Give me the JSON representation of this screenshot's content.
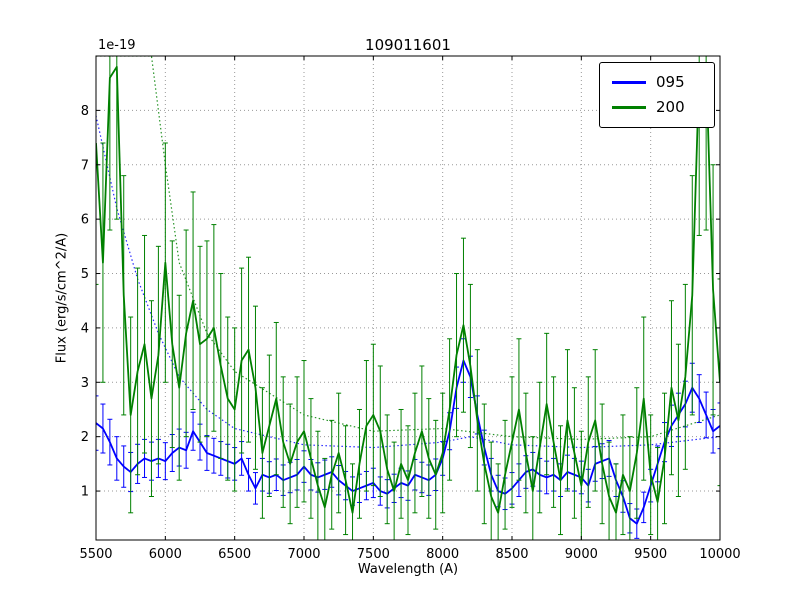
{
  "chart_data": {
    "type": "line",
    "title": "109011601",
    "xlabel": "Wavelength (A)",
    "ylabel": "Flux (erg/s/cm^2/A)",
    "y_offset_label": "1e-19",
    "xlim": [
      5500,
      10000
    ],
    "ylim": [
      0.1,
      9.0
    ],
    "xticks": [
      5500,
      6000,
      6500,
      7000,
      7500,
      8000,
      8500,
      9000,
      9500,
      10000
    ],
    "yticks": [
      1,
      2,
      3,
      4,
      5,
      6,
      7,
      8
    ],
    "grid": {
      "on": true,
      "style": "dotted",
      "color": "#999999"
    },
    "legend_position": "upper right",
    "x": [
      5500,
      5550,
      5600,
      5650,
      5700,
      5750,
      5800,
      5850,
      5900,
      5950,
      6000,
      6050,
      6100,
      6150,
      6200,
      6250,
      6300,
      6350,
      6400,
      6450,
      6500,
      6550,
      6600,
      6650,
      6700,
      6750,
      6800,
      6850,
      6900,
      6950,
      7000,
      7050,
      7100,
      7150,
      7200,
      7250,
      7300,
      7350,
      7400,
      7450,
      7500,
      7550,
      7600,
      7650,
      7700,
      7750,
      7800,
      7850,
      7900,
      7950,
      8000,
      8050,
      8100,
      8150,
      8200,
      8250,
      8300,
      8350,
      8400,
      8450,
      8500,
      8550,
      8600,
      8650,
      8700,
      8750,
      8800,
      8850,
      8900,
      8950,
      9000,
      9050,
      9100,
      9150,
      9200,
      9250,
      9300,
      9350,
      9400,
      9450,
      9500,
      9550,
      9600,
      9650,
      9700,
      9750,
      9800,
      9850,
      9900,
      9950,
      10000
    ],
    "series": [
      {
        "name": "095",
        "color": "#0000ff",
        "values": [
          2.25,
          2.15,
          1.9,
          1.6,
          1.45,
          1.35,
          1.5,
          1.6,
          1.55,
          1.6,
          1.55,
          1.7,
          1.8,
          1.75,
          2.1,
          1.9,
          1.7,
          1.65,
          1.6,
          1.55,
          1.5,
          1.6,
          1.3,
          1.05,
          1.3,
          1.25,
          1.3,
          1.2,
          1.25,
          1.3,
          1.45,
          1.3,
          1.25,
          1.3,
          1.35,
          1.2,
          1.1,
          1.0,
          1.05,
          1.1,
          1.15,
          1.0,
          0.95,
          1.05,
          1.15,
          1.1,
          1.3,
          1.25,
          1.2,
          1.3,
          1.6,
          2.1,
          2.9,
          3.4,
          3.1,
          2.4,
          1.8,
          1.3,
          1.0,
          0.95,
          1.05,
          1.2,
          1.35,
          1.4,
          1.3,
          1.25,
          1.3,
          1.2,
          1.35,
          1.3,
          1.25,
          1.1,
          1.5,
          1.55,
          1.6,
          1.2,
          0.9,
          0.5,
          0.4,
          0.7,
          1.1,
          1.5,
          1.9,
          2.2,
          2.4,
          2.6,
          2.9,
          2.7,
          2.4,
          2.1,
          2.2
        ],
        "errors": [
          0.5,
          0.45,
          0.42,
          0.4,
          0.38,
          0.36,
          0.36,
          0.35,
          0.35,
          0.35,
          0.34,
          0.34,
          0.34,
          0.33,
          0.35,
          0.33,
          0.32,
          0.32,
          0.31,
          0.31,
          0.3,
          0.31,
          0.3,
          0.29,
          0.3,
          0.29,
          0.29,
          0.28,
          0.28,
          0.28,
          0.29,
          0.28,
          0.27,
          0.27,
          0.28,
          0.27,
          0.26,
          0.26,
          0.26,
          0.26,
          0.27,
          0.26,
          0.26,
          0.26,
          0.27,
          0.27,
          0.28,
          0.28,
          0.28,
          0.29,
          0.31,
          0.34,
          0.38,
          0.4,
          0.38,
          0.35,
          0.32,
          0.3,
          0.29,
          0.29,
          0.29,
          0.3,
          0.3,
          0.31,
          0.3,
          0.3,
          0.3,
          0.3,
          0.31,
          0.3,
          0.3,
          0.3,
          0.32,
          0.32,
          0.33,
          0.3,
          0.29,
          0.27,
          0.27,
          0.28,
          0.3,
          0.33,
          0.36,
          0.38,
          0.4,
          0.42,
          0.45,
          0.44,
          0.42,
          0.4,
          0.42
        ],
        "model_dotted": {
          "x": [
            5500,
            5650,
            5800,
            5950,
            6100,
            6300,
            6500,
            7000,
            7500,
            8000,
            8200,
            8500,
            9000,
            9500,
            10000
          ],
          "y": [
            7.9,
            6.2,
            4.9,
            3.9,
            3.1,
            2.5,
            2.15,
            1.85,
            1.8,
            1.9,
            2.0,
            1.85,
            1.8,
            1.85,
            2.0
          ]
        }
      },
      {
        "name": "200",
        "color": "#008000",
        "values": [
          7.4,
          5.2,
          8.6,
          8.8,
          4.6,
          2.4,
          3.2,
          3.7,
          2.7,
          3.5,
          5.2,
          3.7,
          2.9,
          3.9,
          4.5,
          3.7,
          3.8,
          4.0,
          3.3,
          2.7,
          2.5,
          3.4,
          3.6,
          2.9,
          1.7,
          2.2,
          2.7,
          1.9,
          1.5,
          1.9,
          2.1,
          1.6,
          1.1,
          0.7,
          1.3,
          1.7,
          1.2,
          0.6,
          1.5,
          2.2,
          2.4,
          2.1,
          1.4,
          1.0,
          1.5,
          1.2,
          1.7,
          2.1,
          1.6,
          1.3,
          1.7,
          2.5,
          3.5,
          4.05,
          3.3,
          2.3,
          1.5,
          0.9,
          0.6,
          1.3,
          1.9,
          2.5,
          1.7,
          1.0,
          1.8,
          2.6,
          1.9,
          1.2,
          2.3,
          1.7,
          1.1,
          1.9,
          2.3,
          1.5,
          0.9,
          0.6,
          1.3,
          1.0,
          1.7,
          2.7,
          1.3,
          0.8,
          1.6,
          2.9,
          2.3,
          3.1,
          4.6,
          8.7,
          8.8,
          4.7,
          3.0
        ],
        "errors": [
          2.6,
          2.2,
          2.8,
          2.8,
          2.2,
          1.8,
          1.9,
          2.0,
          1.8,
          2.0,
          2.2,
          1.9,
          1.7,
          1.9,
          2.0,
          1.8,
          1.8,
          1.9,
          1.7,
          1.5,
          1.5,
          1.7,
          1.7,
          1.5,
          1.2,
          1.3,
          1.4,
          1.2,
          1.1,
          1.2,
          1.3,
          1.1,
          1.0,
          0.9,
          1.0,
          1.1,
          1.0,
          0.9,
          1.0,
          1.2,
          1.3,
          1.2,
          1.0,
          0.9,
          1.0,
          1.0,
          1.1,
          1.2,
          1.1,
          1.0,
          1.1,
          1.3,
          1.5,
          1.6,
          1.5,
          1.3,
          1.1,
          1.0,
          0.9,
          1.0,
          1.2,
          1.3,
          1.1,
          1.0,
          1.2,
          1.3,
          1.2,
          1.0,
          1.3,
          1.2,
          1.0,
          1.2,
          1.3,
          1.1,
          1.0,
          0.9,
          1.1,
          1.0,
          1.2,
          1.5,
          1.1,
          1.0,
          1.2,
          1.6,
          1.4,
          1.7,
          2.2,
          3.0,
          3.0,
          2.3,
          1.9
        ],
        "model_dotted": {
          "x": [
            5500,
            5700,
            5900,
            6000,
            6100,
            6300,
            6500,
            7000,
            7500,
            8000,
            8500,
            9000,
            9500,
            10000
          ],
          "y": [
            9.0,
            9.0,
            9.0,
            7.0,
            5.2,
            3.9,
            3.2,
            2.4,
            2.1,
            2.15,
            2.0,
            1.95,
            2.0,
            2.4
          ]
        }
      }
    ]
  }
}
